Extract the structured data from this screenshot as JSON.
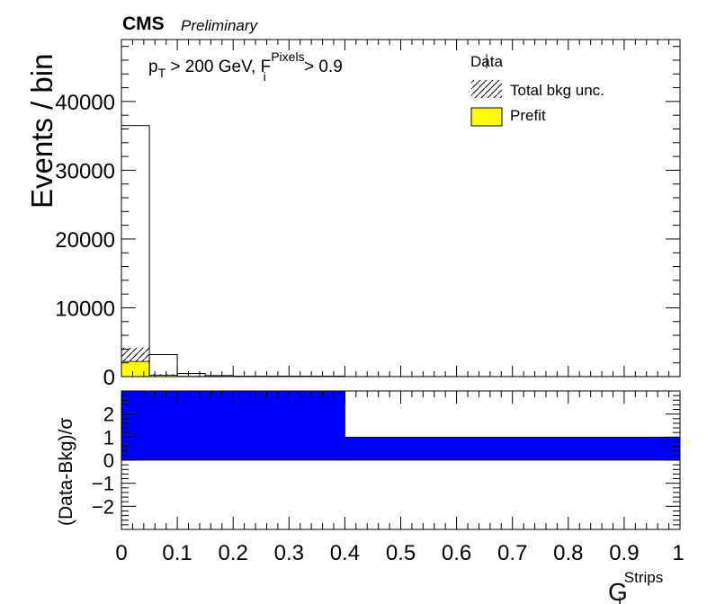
{
  "header": {
    "experiment": "CMS",
    "status": "Preliminary"
  },
  "selection": {
    "pt_base": "p",
    "pt_sub": "T",
    "pt_rest": " > 200 GeV, ",
    "f_base": "F",
    "f_sub": "i",
    "f_sup": "Pixels",
    "f_rest": " > 0.9"
  },
  "colors": {
    "prefit": "#ffff00",
    "pull": "#0000ff",
    "line": "#000000"
  },
  "legend": {
    "placement": "top-right",
    "entries": [
      {
        "label": "Data",
        "style": "marker-errorbar"
      },
      {
        "label": "Total bkg unc.",
        "style": "hatched"
      },
      {
        "label": "Prefit",
        "style": "yellow-fill"
      }
    ]
  },
  "chart_data": [
    {
      "type": "bar",
      "title": "",
      "xlabel": "",
      "ylabel": "Events / bin",
      "xlim": [
        0,
        1
      ],
      "ylim": [
        0,
        49000
      ],
      "ytick_labels": [
        "0",
        "10000",
        "20000",
        "30000",
        "40000"
      ],
      "bin_edges": [
        0,
        0.05,
        0.1,
        0.15,
        0.2,
        0.4,
        1.0
      ],
      "series": [
        {
          "name": "Data",
          "values": [
            36500,
            3200,
            450,
            150,
            60,
            10
          ]
        },
        {
          "name": "Total bkg unc.",
          "values": [
            4200,
            350,
            60,
            20,
            8,
            2
          ]
        },
        {
          "name": "Prefit",
          "values": [
            2200,
            200,
            40,
            12,
            5,
            1
          ]
        }
      ]
    },
    {
      "type": "bar",
      "xlabel_base": "G",
      "xlabel_sub": "i",
      "xlabel_sup": "Strips",
      "ylabel": "(Data-Bkg)/σ",
      "xlim": [
        0,
        1
      ],
      "ylim": [
        -3,
        3
      ],
      "ytick_labels": [
        "−2",
        "−1",
        "0",
        "1",
        "2"
      ],
      "xtick_labels": [
        "0",
        "0.1",
        "0.2",
        "0.3",
        "0.4",
        "0.5",
        "0.6",
        "0.7",
        "0.8",
        "0.9",
        "1"
      ],
      "bin_edges": [
        0,
        0.4,
        1.0
      ],
      "values": [
        3.0,
        1.0
      ]
    }
  ]
}
